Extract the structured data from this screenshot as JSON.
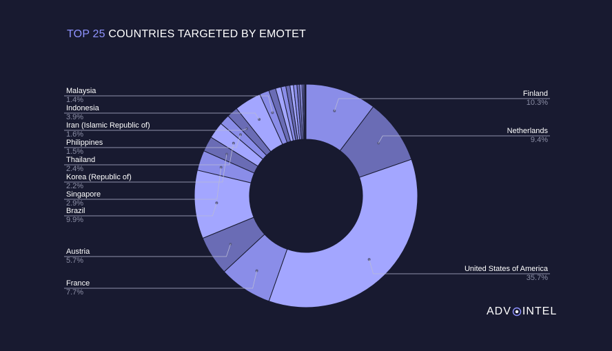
{
  "title": {
    "accent": "TOP 25",
    "rest": " COUNTRIES TARGETED BY EMOTET"
  },
  "logo": {
    "left": "ADV",
    "right": "INTEL"
  },
  "colors": {
    "background": "#181a30",
    "light": "#a3a6ff",
    "mid": "#8a8de8",
    "dark": "#6a6cb5",
    "stroke": "#181a30",
    "leader": "#b9bbd6"
  },
  "chart_data": {
    "type": "pie",
    "donut": true,
    "title": "TOP 25 COUNTRIES TARGETED BY EMOTET",
    "slices": [
      {
        "name": "Finland",
        "value": 10.3,
        "label": "10.3%",
        "color": "#8a8de8"
      },
      {
        "name": "Netherlands",
        "value": 9.4,
        "label": "9.4%",
        "color": "#6a6cb5"
      },
      {
        "name": "United States of America",
        "value": 35.7,
        "label": "35.7%",
        "color": "#a3a6ff"
      },
      {
        "name": "France",
        "value": 7.7,
        "label": "7.7%",
        "color": "#8a8de8"
      },
      {
        "name": "Austria",
        "value": 5.7,
        "label": "5.7%",
        "color": "#6a6cb5"
      },
      {
        "name": "Brazil",
        "value": 9.9,
        "label": "9.9%",
        "color": "#a3a6ff"
      },
      {
        "name": "Singapore",
        "value": 2.9,
        "label": "2.9%",
        "color": "#8a8de8"
      },
      {
        "name": "Korea (Republic of)",
        "value": 2.2,
        "label": "2.2%",
        "color": "#6a6cb5"
      },
      {
        "name": "Thailand",
        "value": 2.4,
        "label": "2.4%",
        "color": "#a3a6ff"
      },
      {
        "name": "Philippines",
        "value": 1.5,
        "label": "1.5%",
        "color": "#8a8de8"
      },
      {
        "name": "Iran (Islamic Republic of)",
        "value": 1.6,
        "label": "1.6%",
        "color": "#6a6cb5"
      },
      {
        "name": "Indonesia",
        "value": 3.9,
        "label": "3.9%",
        "color": "#a3a6ff"
      },
      {
        "name": "Malaysia",
        "value": 1.4,
        "label": "1.4%",
        "color": "#8a8de8"
      },
      {
        "name": "",
        "value": 1.0,
        "color": "#6a6cb5"
      },
      {
        "name": "",
        "value": 0.8,
        "color": "#a3a6ff"
      },
      {
        "name": "",
        "value": 0.7,
        "color": "#8a8de8"
      },
      {
        "name": "",
        "value": 0.6,
        "color": "#6a6cb5"
      },
      {
        "name": "",
        "value": 0.5,
        "color": "#a3a6ff"
      },
      {
        "name": "",
        "value": 0.5,
        "color": "#8a8de8"
      },
      {
        "name": "",
        "value": 0.4,
        "color": "#6a6cb5"
      },
      {
        "name": "",
        "value": 0.3,
        "color": "#a3a6ff"
      },
      {
        "name": "",
        "value": 0.2,
        "color": "#8a8de8"
      },
      {
        "name": "",
        "value": 0.2,
        "color": "#6a6cb5"
      },
      {
        "name": "",
        "value": 0.1,
        "color": "#a3a6ff"
      },
      {
        "name": "",
        "value": 0.1,
        "color": "#8a8de8"
      }
    ]
  }
}
